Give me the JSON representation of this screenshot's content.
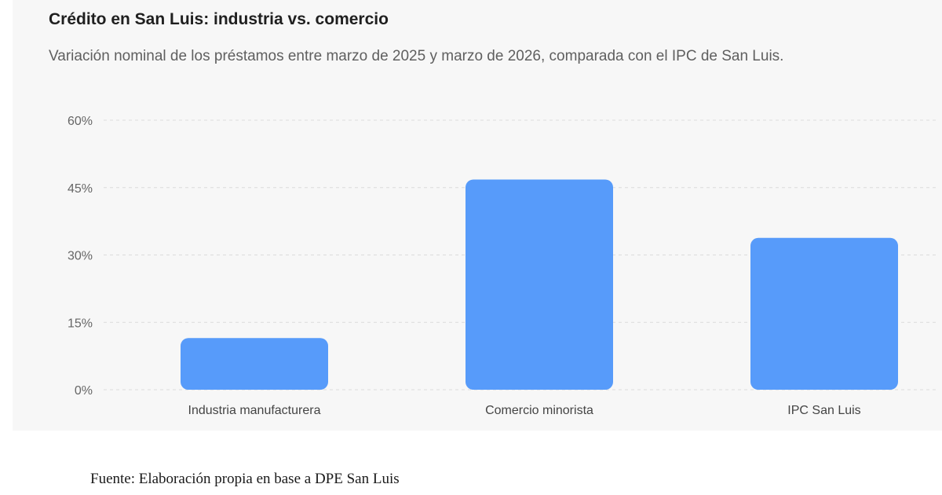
{
  "chart_data": {
    "type": "bar",
    "title": "Crédito en San Luis: industria vs. comercio",
    "subtitle": "Variación nominal de los préstamos entre marzo de 2025 y marzo de 2026, comparada con el IPC de San Luis.",
    "categories": [
      "Industria manufacturera",
      "Comercio minorista",
      "IPC San Luis"
    ],
    "values": [
      11.5,
      46.8,
      33.8
    ],
    "unit": "%",
    "ylim": [
      0,
      60
    ],
    "yticks": [
      "0%",
      "15%",
      "30%",
      "45%",
      "60%"
    ],
    "ytick_values": [
      0,
      15,
      30,
      45,
      60
    ],
    "grid": true,
    "bar_color": "#579bfa",
    "xlabel": "",
    "ylabel": ""
  },
  "source": "Fuente: Elaboración propia en base a DPE San Luis"
}
